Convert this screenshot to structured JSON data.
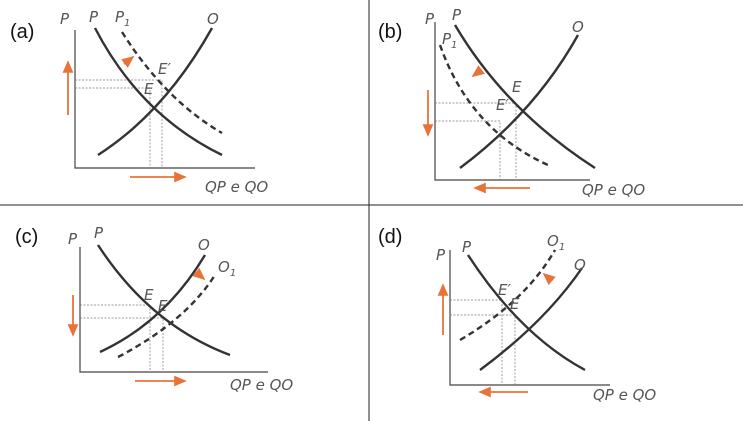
{
  "panels": [
    {
      "label": "(a)",
      "axis_label": "P",
      "x_axis_label": "QP e QO",
      "curves": [
        {
          "name": "P"
        },
        {
          "name": "P",
          "sub": "1"
        },
        {
          "name": "O"
        }
      ],
      "points": [
        "E",
        "E′"
      ]
    },
    {
      "label": "(b)",
      "axis_label": "P",
      "x_axis_label": "QP e QO",
      "curves": [
        {
          "name": "P"
        },
        {
          "name": "P",
          "sub": "1"
        },
        {
          "name": "O"
        }
      ],
      "points": [
        "E",
        "E′"
      ]
    },
    {
      "label": "(c)",
      "axis_label": "P",
      "x_axis_label": "QP e QO",
      "curves": [
        {
          "name": "P"
        },
        {
          "name": "O"
        },
        {
          "name": "O",
          "sub": "1"
        }
      ],
      "points": [
        "E",
        "E′"
      ]
    },
    {
      "label": "(d)",
      "axis_label": "P",
      "x_axis_label": "QP e QO",
      "curves": [
        {
          "name": "P"
        },
        {
          "name": "O",
          "sub": "1"
        },
        {
          "name": "O"
        }
      ],
      "points": [
        "E′",
        "E"
      ]
    }
  ]
}
